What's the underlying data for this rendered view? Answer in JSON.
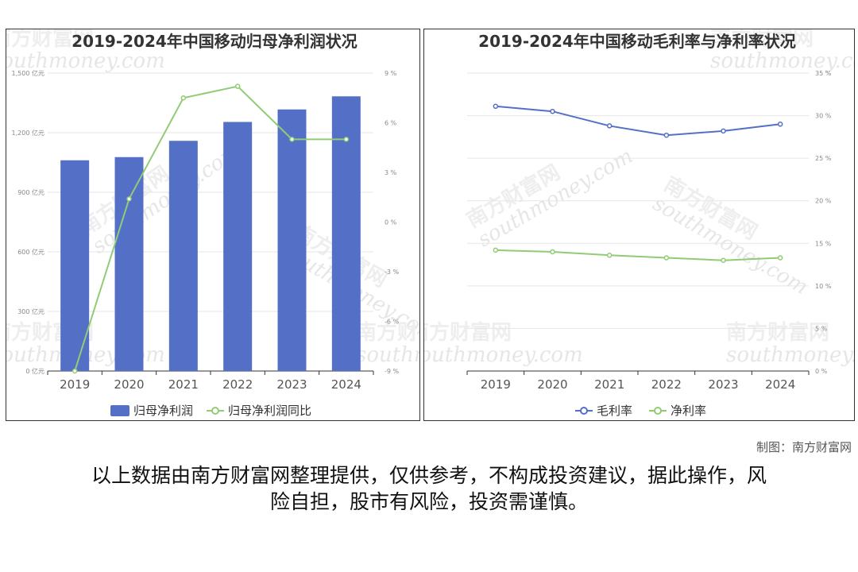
{
  "credit": "制图：南方财富网",
  "disclaimer_line1": "以上数据由南方财富网整理提供，仅供参考，不构成投资建议，据此操作，风",
  "disclaimer_line2": "险自担，股市有风险，投资需谨慎。",
  "watermark": {
    "cn": "南方财富网",
    "en": "southmoney.com"
  },
  "colors": {
    "bar": "#5470c6",
    "green_line": "#91cc75",
    "blue_line": "#5470c6",
    "grid": "#e6e6e6",
    "axis": "#333333"
  },
  "chart_data": [
    {
      "type": "bar",
      "title": "2019-2024年中国移动归母净利润状况",
      "categories": [
        "2019",
        "2020",
        "2021",
        "2022",
        "2023",
        "2024"
      ],
      "series": [
        {
          "name": "归母净利润",
          "type": "bar",
          "axis": "left",
          "values": [
            1061,
            1077,
            1159,
            1254,
            1317,
            1383
          ]
        },
        {
          "name": "归母净利润同比",
          "type": "line",
          "axis": "right",
          "values": [
            -9.0,
            1.4,
            7.5,
            8.2,
            5.0,
            5.0
          ]
        }
      ],
      "y_left": {
        "min": 0,
        "max": 1500,
        "ticks": [
          "0 亿元",
          "300 亿元",
          "600 亿元",
          "900 亿元",
          "1,200 亿元",
          "1,500 亿元"
        ]
      },
      "y_right": {
        "min": -9,
        "max": 9,
        "ticks": [
          "-9 %",
          "-6 %",
          "-3 %",
          "0 %",
          "3 %",
          "6 %",
          "9 %"
        ]
      },
      "grid": true,
      "legend": "bottom"
    },
    {
      "type": "line",
      "title": "2019-2024年中国移动毛利率与净利率状况",
      "categories": [
        "2019",
        "2020",
        "2021",
        "2022",
        "2023",
        "2024"
      ],
      "series": [
        {
          "name": "毛利率",
          "values": [
            31.1,
            30.5,
            28.8,
            27.7,
            28.2,
            29.0
          ]
        },
        {
          "name": "净利率",
          "values": [
            14.2,
            14.0,
            13.6,
            13.3,
            13.0,
            13.3
          ]
        }
      ],
      "y_right": {
        "min": 0,
        "max": 35,
        "ticks": [
          "0 %",
          "5 %",
          "10 %",
          "15 %",
          "20 %",
          "25 %",
          "30 %",
          "35 %"
        ]
      },
      "grid": true,
      "legend": "bottom"
    }
  ]
}
